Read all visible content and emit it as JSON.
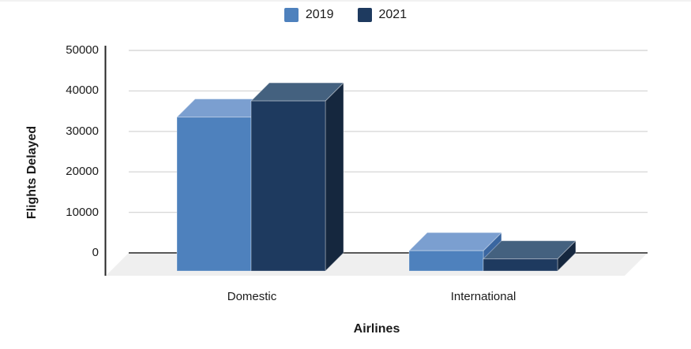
{
  "chart_data": {
    "type": "bar",
    "style": "3d-clustered-column",
    "title": "",
    "xlabel": "Airlines",
    "ylabel": "Flights Delayed",
    "categories": [
      "Domestic",
      "International"
    ],
    "series": [
      {
        "name": "2019",
        "values": [
          38000,
          5000
        ],
        "color": "#4E81BD",
        "top_color": "#7B9FD0",
        "side_color": "#3A66A0"
      },
      {
        "name": "2021",
        "values": [
          42000,
          3000
        ],
        "color": "#1E3A5F",
        "top_color": "#44617F",
        "side_color": "#15273E"
      }
    ],
    "ylim": [
      0,
      50000
    ],
    "yticks": [
      0,
      10000,
      20000,
      30000,
      40000,
      50000
    ],
    "ytick_labels": [
      "50000",
      "40000",
      "30000",
      "20000",
      "10000",
      "0"
    ],
    "grid": true,
    "legend_position": "top-center",
    "colors": {
      "gridline": "#D9D9D9",
      "zero_line": "#595959",
      "axis_line": "#262626",
      "floor": "#EFEFEF",
      "text": "#1A1A1A"
    }
  }
}
